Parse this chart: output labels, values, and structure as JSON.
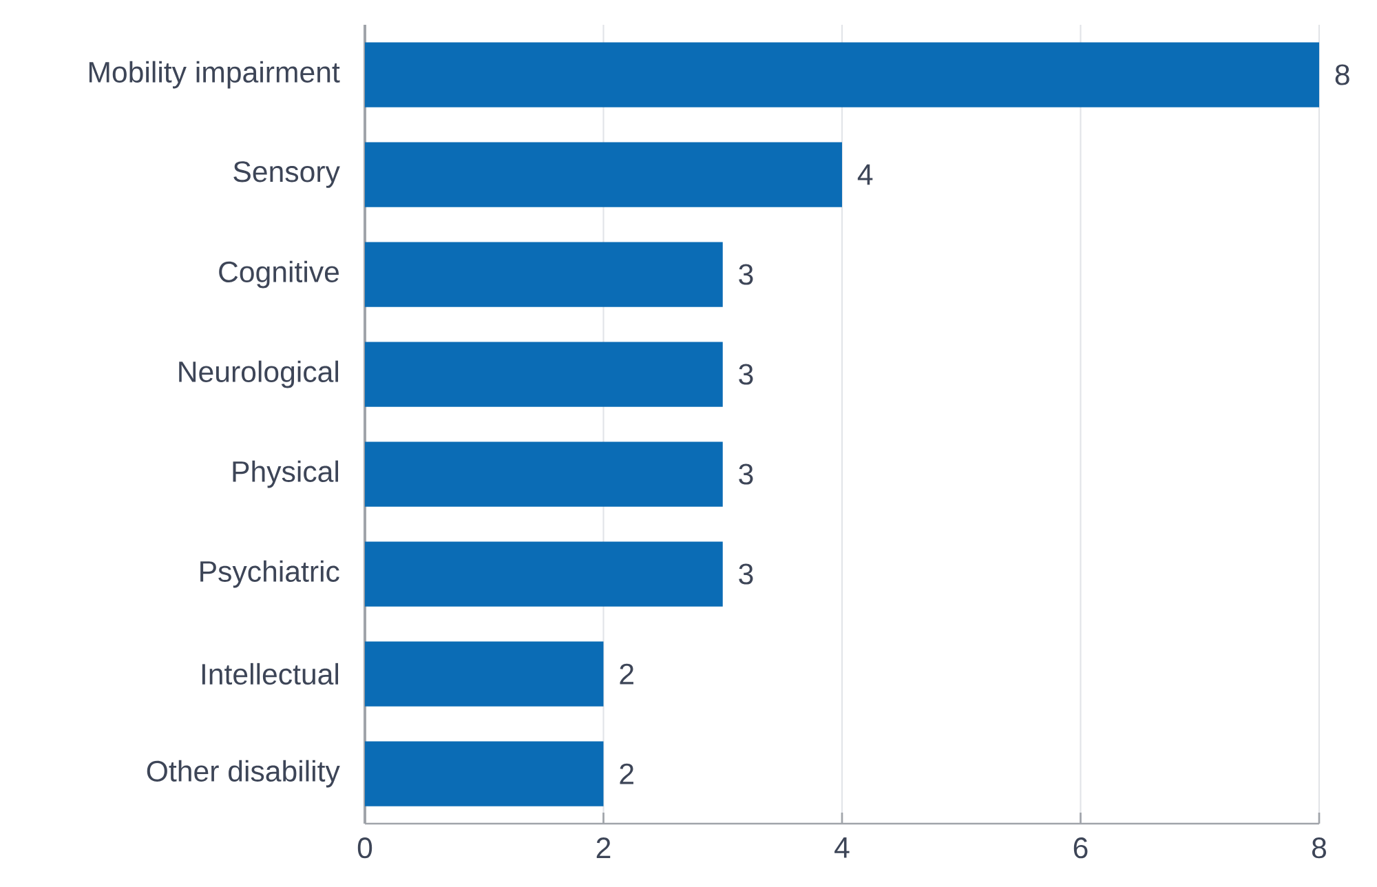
{
  "chart_data": {
    "type": "bar",
    "orientation": "horizontal",
    "categories": [
      "Mobility impairment",
      "Sensory",
      "Cognitive",
      "Neurological",
      "Physical",
      "Psychiatric",
      "Intellectual",
      "Other disability"
    ],
    "values": [
      8,
      4,
      3,
      3,
      3,
      3,
      2,
      2
    ],
    "color": "#0b6cb5",
    "xlim": [
      0,
      8
    ],
    "xticks": [
      0,
      2,
      4,
      6,
      8
    ],
    "grid": "x",
    "data_labels": true
  }
}
